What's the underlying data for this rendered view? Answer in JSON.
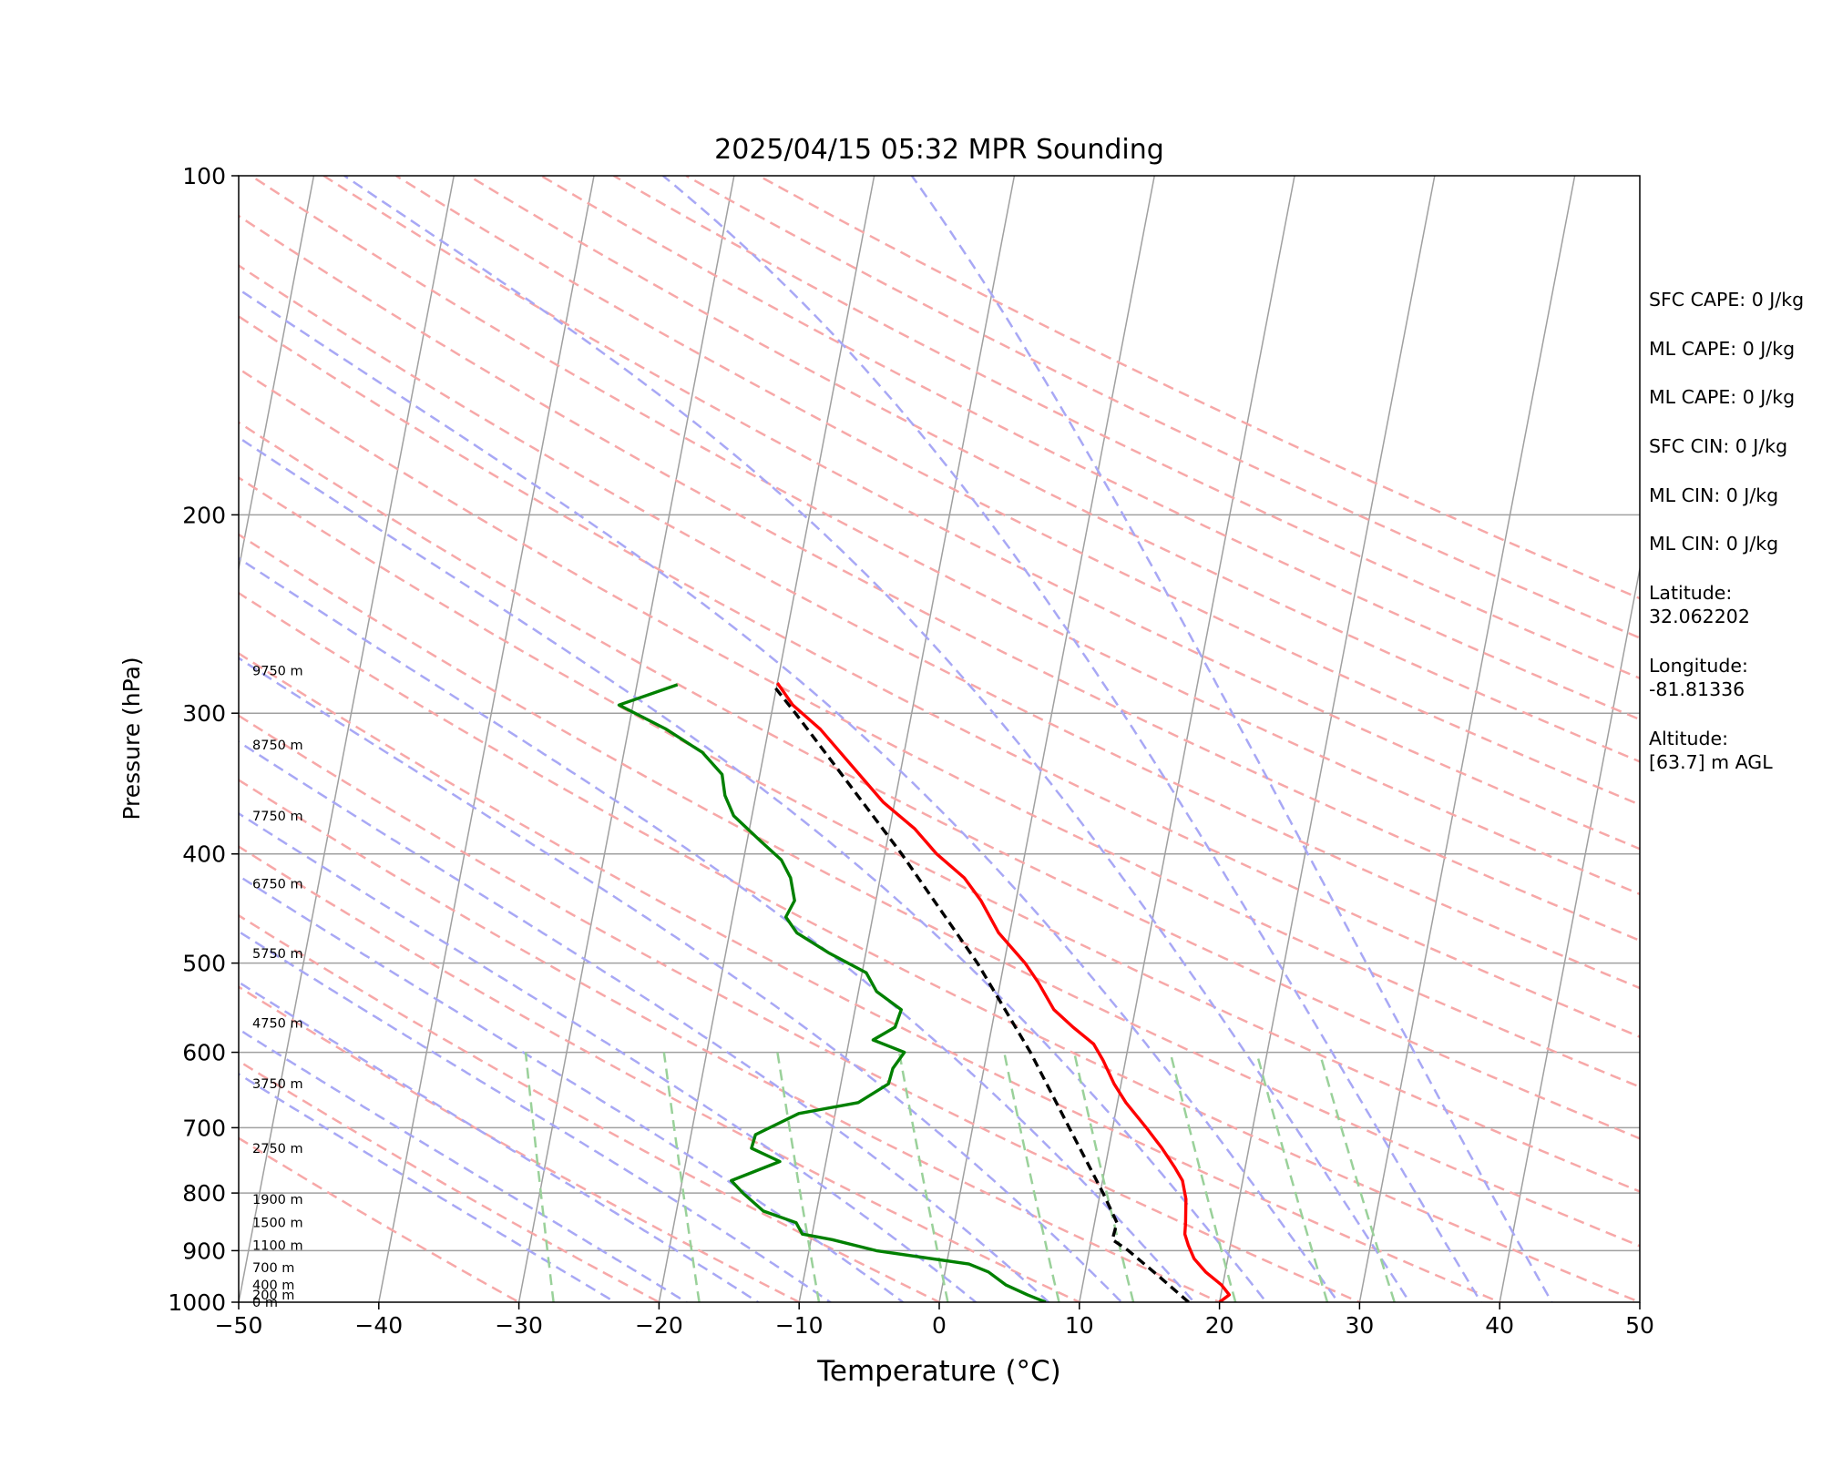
{
  "chart_data": {
    "type": "line",
    "title": "2025/04/15 05:32 MPR Sounding",
    "xlabel": "Temperature (°C)",
    "ylabel": "Pressure (hPa)",
    "xlim": [
      -50,
      50
    ],
    "ylim": [
      1000,
      100
    ],
    "y_scale": "log",
    "skew": true,
    "grid": true,
    "x_ticks": [
      "−50",
      "−40",
      "−30",
      "−20",
      "−10",
      "0",
      "10",
      "20",
      "30",
      "40",
      "50"
    ],
    "y_ticks": [
      "100",
      "200",
      "300",
      "400",
      "500",
      "600",
      "700",
      "800",
      "900",
      "1000"
    ],
    "height_labels": [
      {
        "p": 1000,
        "text": "0 m"
      },
      {
        "p": 985,
        "text": "200 m"
      },
      {
        "p": 965,
        "text": "400 m"
      },
      {
        "p": 932,
        "text": "700 m"
      },
      {
        "p": 890,
        "text": "1100 m"
      },
      {
        "p": 850,
        "text": "1500 m"
      },
      {
        "p": 810,
        "text": "1900 m"
      },
      {
        "p": 730,
        "text": "2750 m"
      },
      {
        "p": 640,
        "text": "3750 m"
      },
      {
        "p": 565,
        "text": "4750 m"
      },
      {
        "p": 490,
        "text": "5750 m"
      },
      {
        "p": 425,
        "text": "6750 m"
      },
      {
        "p": 370,
        "text": "7750 m"
      },
      {
        "p": 320,
        "text": "8750 m"
      },
      {
        "p": 275,
        "text": "9750 m"
      }
    ],
    "series": [
      {
        "name": "Temperature",
        "color": "#ff0000",
        "points": [
          [
            1000,
            20.0
          ],
          [
            985,
            20.6
          ],
          [
            965,
            19.9
          ],
          [
            940,
            18.6
          ],
          [
            915,
            17.6
          ],
          [
            890,
            17.0
          ],
          [
            870,
            16.6
          ],
          [
            850,
            16.5
          ],
          [
            810,
            16.2
          ],
          [
            780,
            15.7
          ],
          [
            760,
            15.0
          ],
          [
            730,
            13.8
          ],
          [
            700,
            12.4
          ],
          [
            665,
            10.6
          ],
          [
            640,
            9.5
          ],
          [
            610,
            8.4
          ],
          [
            590,
            7.5
          ],
          [
            570,
            5.8
          ],
          [
            550,
            4.2
          ],
          [
            520,
            2.7
          ],
          [
            500,
            1.5
          ],
          [
            470,
            -0.8
          ],
          [
            440,
            -2.5
          ],
          [
            420,
            -4.0
          ],
          [
            400,
            -6.3
          ],
          [
            380,
            -8.2
          ],
          [
            360,
            -10.8
          ],
          [
            330,
            -14.0
          ],
          [
            310,
            -16.3
          ],
          [
            295,
            -18.6
          ],
          [
            282,
            -20.0
          ]
        ]
      },
      {
        "name": "Dewpoint",
        "color": "#008000",
        "points": [
          [
            1000,
            7.6
          ],
          [
            985,
            6.2
          ],
          [
            965,
            4.5
          ],
          [
            940,
            3.1
          ],
          [
            925,
            1.6
          ],
          [
            900,
            -5.2
          ],
          [
            880,
            -8.5
          ],
          [
            870,
            -10.7
          ],
          [
            850,
            -11.3
          ],
          [
            830,
            -13.8
          ],
          [
            800,
            -15.5
          ],
          [
            780,
            -16.5
          ],
          [
            750,
            -13.3
          ],
          [
            730,
            -15.5
          ],
          [
            710,
            -15.4
          ],
          [
            680,
            -12.6
          ],
          [
            665,
            -8.5
          ],
          [
            640,
            -6.6
          ],
          [
            620,
            -6.5
          ],
          [
            600,
            -5.9
          ],
          [
            585,
            -8.3
          ],
          [
            570,
            -6.9
          ],
          [
            550,
            -6.7
          ],
          [
            530,
            -8.7
          ],
          [
            510,
            -9.7
          ],
          [
            490,
            -12.6
          ],
          [
            470,
            -15.2
          ],
          [
            455,
            -16.2
          ],
          [
            440,
            -15.8
          ],
          [
            420,
            -16.4
          ],
          [
            405,
            -17.3
          ],
          [
            390,
            -19.0
          ],
          [
            370,
            -21.3
          ],
          [
            355,
            -22.2
          ],
          [
            340,
            -22.7
          ],
          [
            325,
            -24.4
          ],
          [
            310,
            -27.3
          ],
          [
            295,
            -31.0
          ],
          [
            283,
            -27.1
          ]
        ]
      },
      {
        "name": "Parcel",
        "color": "#000000",
        "dashed": true,
        "points": [
          [
            1000,
            17.8
          ],
          [
            950,
            15.4
          ],
          [
            900,
            12.8
          ],
          [
            880,
            11.5
          ],
          [
            850,
            11.6
          ],
          [
            800,
            10.2
          ],
          [
            700,
            6.9
          ],
          [
            600,
            3.1
          ],
          [
            500,
            -1.9
          ],
          [
            400,
            -8.8
          ],
          [
            350,
            -13.2
          ],
          [
            300,
            -18.3
          ],
          [
            283,
            -20.3
          ]
        ]
      }
    ]
  },
  "side_panel": {
    "sfc_cape": "SFC CAPE: 0 J/kg",
    "ml_cape_1": "ML CAPE: 0 J/kg",
    "ml_cape_2": "ML CAPE: 0 J/kg",
    "sfc_cin": "SFC CIN: 0 J/kg",
    "ml_cin_1": "ML CIN: 0 J/kg",
    "ml_cin_2": "ML CIN: 0 J/kg",
    "latitude": "Latitude:\n32.062202",
    "longitude": "Longitude:\n-81.81336",
    "altitude": "Altitude:\n[63.7] m AGL"
  },
  "colors": {
    "temperature": "#ff0000",
    "dewpoint": "#008000",
    "parcel": "#000000",
    "dry_adiabat": "#f7a8a8",
    "moist_adiabat": "#a8a8f5",
    "mixing_ratio": "#9ad19a",
    "isotherm": "#a0a0a0"
  }
}
